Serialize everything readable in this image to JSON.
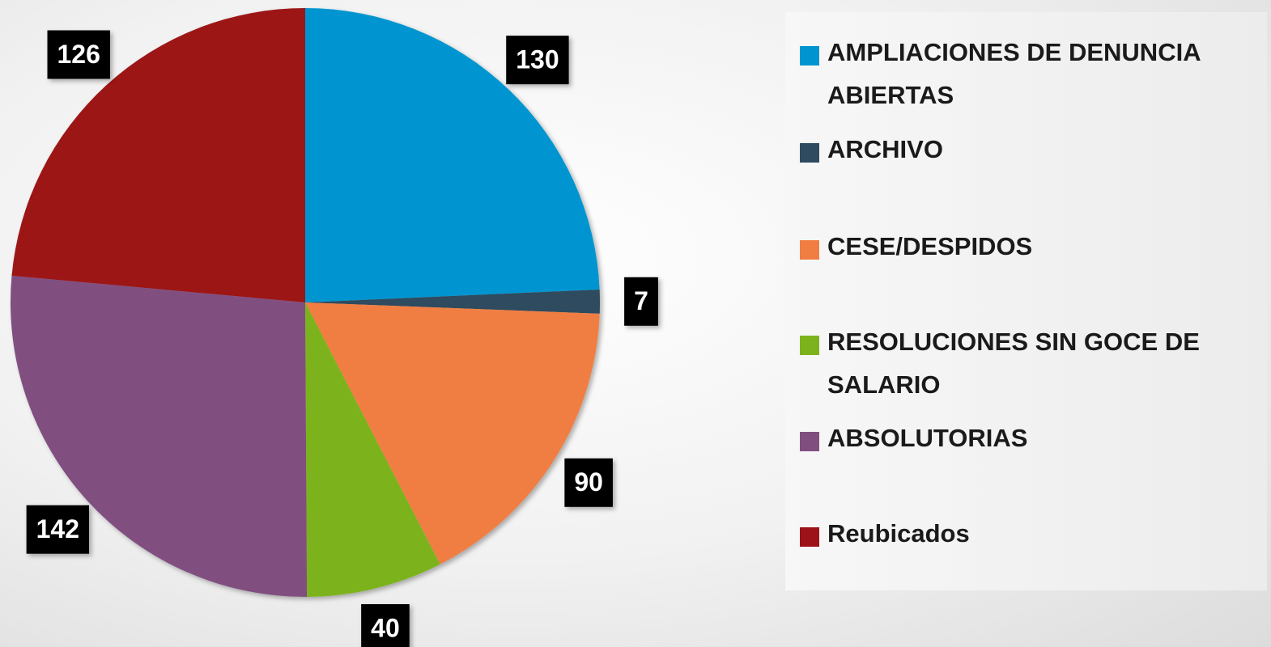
{
  "chart_data": {
    "type": "pie",
    "categories": [
      "AMPLIACIONES DE DENUNCIA ABIERTAS",
      "ARCHIVO",
      "CESE/DESPIDOS",
      "RESOLUCIONES SIN GOCE DE SALARIO",
      "ABSOLUTORIAS",
      "Reubicados"
    ],
    "values": [
      130,
      7,
      90,
      40,
      142,
      126
    ],
    "colors": [
      "#0095d0",
      "#2f4b5f",
      "#f07e42",
      "#7cb31d",
      "#804f80",
      "#9c1218"
    ],
    "legend": "right"
  }
}
